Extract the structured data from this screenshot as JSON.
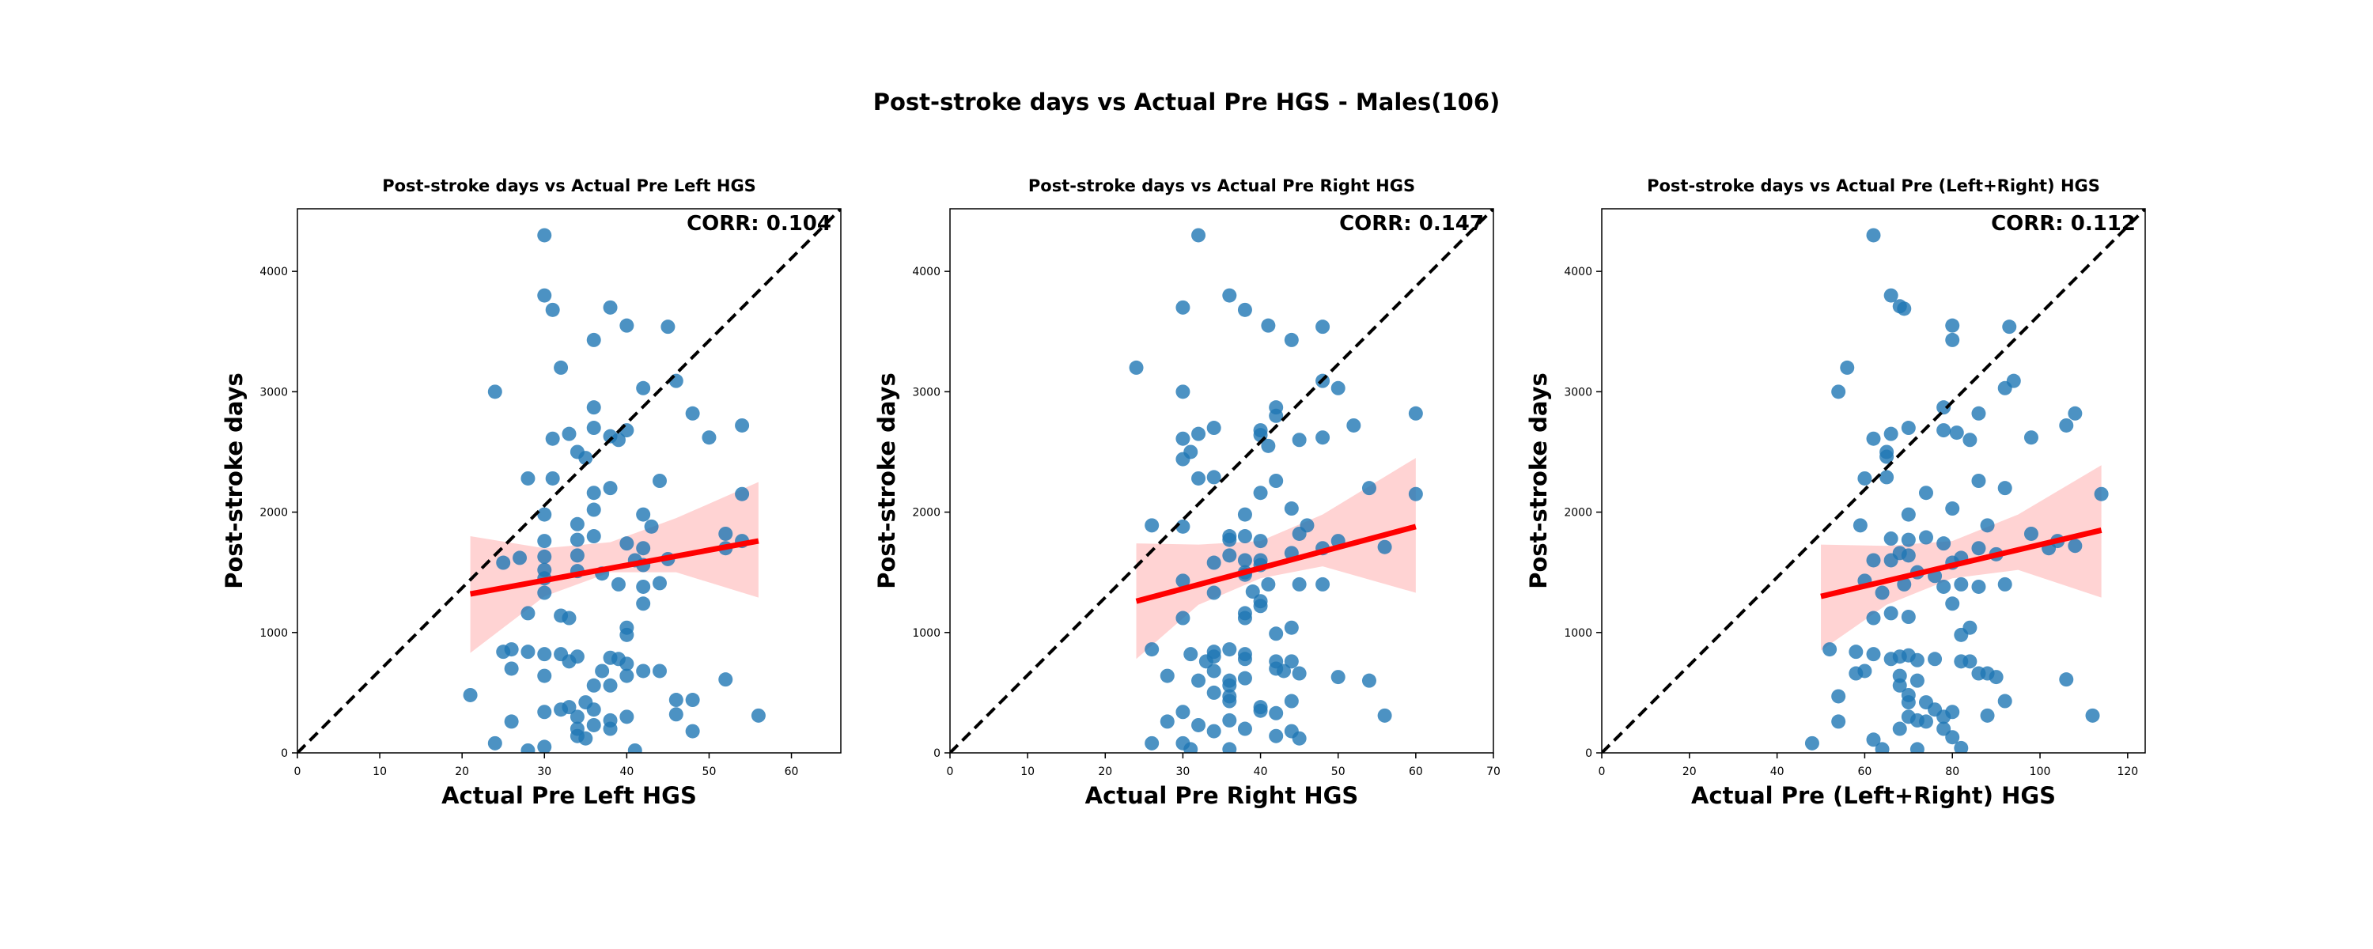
{
  "figure": {
    "suptitle": "Post-stroke days vs Actual Pre HGS - Males(106)"
  },
  "colors": {
    "points": "#1f77b4",
    "regression_line": "#ff0000",
    "confidence_band": "#ffc4c4",
    "identity_line": "#000000"
  },
  "chart_data": [
    {
      "type": "scatter",
      "title": "Post-stroke days vs Actual Pre Left HGS",
      "xlabel": "Actual Pre Left HGS",
      "ylabel": "Post-stroke days",
      "corr_label": "CORR: 0.104",
      "xlim": [
        0,
        66
      ],
      "ylim": [
        0,
        4520
      ],
      "xticks": [
        0,
        10,
        20,
        30,
        40,
        50,
        60
      ],
      "yticks": [
        0,
        1000,
        2000,
        3000,
        4000
      ],
      "regression": {
        "x": [
          21,
          56
        ],
        "y": [
          1320,
          1760
        ]
      },
      "ci_band": {
        "x": [
          21,
          30,
          38,
          46,
          56
        ],
        "upper": [
          1800,
          1700,
          1750,
          1950,
          2250
        ],
        "lower": [
          830,
          1300,
          1500,
          1500,
          1290
        ]
      },
      "identity_line": true,
      "points": [
        [
          30,
          4300
        ],
        [
          30,
          3800
        ],
        [
          31,
          3680
        ],
        [
          38,
          3700
        ],
        [
          40,
          3550
        ],
        [
          45,
          3540
        ],
        [
          36,
          3430
        ],
        [
          32,
          3200
        ],
        [
          24,
          3000
        ],
        [
          42,
          3030
        ],
        [
          46,
          3090
        ],
        [
          36,
          2870
        ],
        [
          48,
          2820
        ],
        [
          54,
          2720
        ],
        [
          36,
          2700
        ],
        [
          40,
          2680
        ],
        [
          33,
          2650
        ],
        [
          38,
          2630
        ],
        [
          39,
          2600
        ],
        [
          31,
          2610
        ],
        [
          50,
          2620
        ],
        [
          34,
          2500
        ],
        [
          35,
          2450
        ],
        [
          28,
          2280
        ],
        [
          31,
          2280
        ],
        [
          44,
          2260
        ],
        [
          36,
          2160
        ],
        [
          38,
          2200
        ],
        [
          54,
          2150
        ],
        [
          30,
          1980
        ],
        [
          36,
          2020
        ],
        [
          42,
          1980
        ],
        [
          43,
          1880
        ],
        [
          34,
          1900
        ],
        [
          36,
          1800
        ],
        [
          34,
          1770
        ],
        [
          30,
          1760
        ],
        [
          40,
          1740
        ],
        [
          42,
          1700
        ],
        [
          52,
          1820
        ],
        [
          54,
          1760
        ],
        [
          52,
          1700
        ],
        [
          25,
          1580
        ],
        [
          27,
          1620
        ],
        [
          30,
          1630
        ],
        [
          34,
          1640
        ],
        [
          37,
          1490
        ],
        [
          41,
          1600
        ],
        [
          45,
          1610
        ],
        [
          42,
          1560
        ],
        [
          34,
          1510
        ],
        [
          30,
          1450
        ],
        [
          30,
          1330
        ],
        [
          39,
          1400
        ],
        [
          42,
          1380
        ],
        [
          44,
          1410
        ],
        [
          42,
          1240
        ],
        [
          32,
          1140
        ],
        [
          28,
          1160
        ],
        [
          33,
          1120
        ],
        [
          40,
          1040
        ],
        [
          40,
          980
        ],
        [
          28,
          840
        ],
        [
          25,
          840
        ],
        [
          26,
          860
        ],
        [
          30,
          820
        ],
        [
          32,
          820
        ],
        [
          33,
          760
        ],
        [
          34,
          800
        ],
        [
          38,
          790
        ],
        [
          39,
          780
        ],
        [
          40,
          740
        ],
        [
          42,
          680
        ],
        [
          44,
          680
        ],
        [
          26,
          700
        ],
        [
          30,
          640
        ],
        [
          37,
          680
        ],
        [
          40,
          640
        ],
        [
          52,
          610
        ],
        [
          36,
          560
        ],
        [
          38,
          560
        ],
        [
          21,
          480
        ],
        [
          46,
          440
        ],
        [
          48,
          440
        ],
        [
          35,
          420
        ],
        [
          32,
          360
        ],
        [
          33,
          380
        ],
        [
          30,
          340
        ],
        [
          36,
          360
        ],
        [
          34,
          300
        ],
        [
          40,
          300
        ],
        [
          46,
          320
        ],
        [
          56,
          310
        ],
        [
          26,
          260
        ],
        [
          38,
          270
        ],
        [
          36,
          230
        ],
        [
          34,
          200
        ],
        [
          38,
          200
        ],
        [
          48,
          180
        ],
        [
          34,
          140
        ],
        [
          35,
          120
        ],
        [
          24,
          80
        ],
        [
          28,
          20
        ],
        [
          30,
          50
        ],
        [
          41,
          20
        ],
        [
          30,
          1520
        ]
      ]
    },
    {
      "type": "scatter",
      "title": "Post-stroke days vs Actual Pre Right HGS",
      "xlabel": "Actual Pre Right HGS",
      "ylabel": "Post-stroke days",
      "corr_label": "CORR: 0.147",
      "xlim": [
        0,
        70
      ],
      "ylim": [
        0,
        4520
      ],
      "xticks": [
        0,
        10,
        20,
        30,
        40,
        50,
        60,
        70
      ],
      "yticks": [
        0,
        1000,
        2000,
        3000,
        4000
      ],
      "regression": {
        "x": [
          24,
          60
        ],
        "y": [
          1260,
          1880
        ]
      },
      "ci_band": {
        "x": [
          24,
          32,
          40,
          48,
          60
        ],
        "upper": [
          1740,
          1730,
          1760,
          1980,
          2450
        ],
        "lower": [
          780,
          1230,
          1450,
          1550,
          1330
        ]
      },
      "identity_line": true,
      "points": [
        [
          32,
          4300
        ],
        [
          36,
          3800
        ],
        [
          38,
          3680
        ],
        [
          30,
          3700
        ],
        [
          41,
          3550
        ],
        [
          48,
          3540
        ],
        [
          44,
          3430
        ],
        [
          24,
          3200
        ],
        [
          30,
          3000
        ],
        [
          48,
          3090
        ],
        [
          50,
          3030
        ],
        [
          42,
          2870
        ],
        [
          42,
          2800
        ],
        [
          60,
          2820
        ],
        [
          52,
          2720
        ],
        [
          34,
          2700
        ],
        [
          40,
          2680
        ],
        [
          40,
          2640
        ],
        [
          32,
          2650
        ],
        [
          30,
          2610
        ],
        [
          45,
          2600
        ],
        [
          48,
          2620
        ],
        [
          41,
          2550
        ],
        [
          31,
          2500
        ],
        [
          30,
          2440
        ],
        [
          34,
          2290
        ],
        [
          32,
          2280
        ],
        [
          42,
          2260
        ],
        [
          54,
          2200
        ],
        [
          40,
          2160
        ],
        [
          60,
          2150
        ],
        [
          38,
          1980
        ],
        [
          44,
          2030
        ],
        [
          26,
          1890
        ],
        [
          46,
          1890
        ],
        [
          30,
          1880
        ],
        [
          36,
          1800
        ],
        [
          36,
          1770
        ],
        [
          38,
          1800
        ],
        [
          40,
          1760
        ],
        [
          45,
          1820
        ],
        [
          50,
          1760
        ],
        [
          48,
          1700
        ],
        [
          56,
          1710
        ],
        [
          36,
          1640
        ],
        [
          38,
          1600
        ],
        [
          40,
          1600
        ],
        [
          40,
          1560
        ],
        [
          44,
          1660
        ],
        [
          34,
          1580
        ],
        [
          38,
          1500
        ],
        [
          38,
          1480
        ],
        [
          30,
          1430
        ],
        [
          41,
          1400
        ],
        [
          45,
          1400
        ],
        [
          48,
          1400
        ],
        [
          34,
          1330
        ],
        [
          39,
          1340
        ],
        [
          40,
          1260
        ],
        [
          40,
          1220
        ],
        [
          30,
          1120
        ],
        [
          38,
          1160
        ],
        [
          38,
          1120
        ],
        [
          42,
          990
        ],
        [
          44,
          1040
        ],
        [
          26,
          860
        ],
        [
          31,
          820
        ],
        [
          33,
          760
        ],
        [
          34,
          800
        ],
        [
          34,
          840
        ],
        [
          36,
          860
        ],
        [
          38,
          820
        ],
        [
          38,
          780
        ],
        [
          42,
          760
        ],
        [
          44,
          760
        ],
        [
          34,
          680
        ],
        [
          36,
          600
        ],
        [
          42,
          700
        ],
        [
          43,
          680
        ],
        [
          45,
          660
        ],
        [
          28,
          640
        ],
        [
          32,
          600
        ],
        [
          38,
          620
        ],
        [
          50,
          630
        ],
        [
          54,
          600
        ],
        [
          36,
          560
        ],
        [
          34,
          500
        ],
        [
          36,
          470
        ],
        [
          36,
          430
        ],
        [
          44,
          430
        ],
        [
          40,
          380
        ],
        [
          30,
          340
        ],
        [
          40,
          350
        ],
        [
          42,
          330
        ],
        [
          56,
          310
        ],
        [
          36,
          270
        ],
        [
          28,
          260
        ],
        [
          32,
          230
        ],
        [
          34,
          180
        ],
        [
          38,
          200
        ],
        [
          44,
          180
        ],
        [
          42,
          140
        ],
        [
          45,
          120
        ],
        [
          26,
          80
        ],
        [
          30,
          80
        ],
        [
          31,
          30
        ],
        [
          36,
          30
        ]
      ]
    },
    {
      "type": "scatter",
      "title": "Post-stroke days vs Actual Pre (Left+Right) HGS",
      "xlabel": "Actual Pre (Left+Right) HGS",
      "ylabel": "Post-stroke days",
      "corr_label": "CORR: 0.112",
      "xlim": [
        0,
        124
      ],
      "ylim": [
        0,
        4520
      ],
      "xticks": [
        0,
        20,
        40,
        60,
        80,
        100,
        120
      ],
      "yticks": [
        0,
        1000,
        2000,
        3000,
        4000
      ],
      "regression": {
        "x": [
          50,
          114
        ],
        "y": [
          1300,
          1850
        ]
      },
      "ci_band": {
        "x": [
          50,
          65,
          80,
          95,
          114
        ],
        "upper": [
          1730,
          1720,
          1760,
          1980,
          2390
        ],
        "lower": [
          850,
          1230,
          1450,
          1520,
          1290
        ]
      },
      "identity_line": true,
      "points": [
        [
          62,
          4300
        ],
        [
          66,
          3800
        ],
        [
          68,
          3710
        ],
        [
          69,
          3690
        ],
        [
          80,
          3550
        ],
        [
          93,
          3540
        ],
        [
          80,
          3430
        ],
        [
          56,
          3200
        ],
        [
          54,
          3000
        ],
        [
          92,
          3030
        ],
        [
          94,
          3090
        ],
        [
          78,
          2870
        ],
        [
          86,
          2820
        ],
        [
          108,
          2820
        ],
        [
          106,
          2720
        ],
        [
          70,
          2700
        ],
        [
          78,
          2680
        ],
        [
          81,
          2660
        ],
        [
          66,
          2650
        ],
        [
          84,
          2600
        ],
        [
          62,
          2610
        ],
        [
          98,
          2620
        ],
        [
          65,
          2500
        ],
        [
          65,
          2460
        ],
        [
          60,
          2280
        ],
        [
          65,
          2290
        ],
        [
          86,
          2260
        ],
        [
          92,
          2200
        ],
        [
          114,
          2150
        ],
        [
          74,
          2160
        ],
        [
          70,
          1980
        ],
        [
          80,
          2030
        ],
        [
          59,
          1890
        ],
        [
          66,
          1780
        ],
        [
          70,
          1770
        ],
        [
          74,
          1790
        ],
        [
          78,
          1740
        ],
        [
          86,
          1700
        ],
        [
          98,
          1820
        ],
        [
          102,
          1700
        ],
        [
          104,
          1760
        ],
        [
          108,
          1720
        ],
        [
          60,
          1430
        ],
        [
          62,
          1600
        ],
        [
          66,
          1600
        ],
        [
          68,
          1660
        ],
        [
          70,
          1640
        ],
        [
          72,
          1500
        ],
        [
          76,
          1470
        ],
        [
          80,
          1580
        ],
        [
          82,
          1620
        ],
        [
          88,
          1890
        ],
        [
          90,
          1650
        ],
        [
          64,
          1330
        ],
        [
          69,
          1400
        ],
        [
          78,
          1380
        ],
        [
          82,
          1400
        ],
        [
          86,
          1380
        ],
        [
          92,
          1400
        ],
        [
          80,
          1240
        ],
        [
          62,
          1120
        ],
        [
          66,
          1160
        ],
        [
          70,
          1130
        ],
        [
          82,
          980
        ],
        [
          84,
          1040
        ],
        [
          52,
          860
        ],
        [
          58,
          840
        ],
        [
          62,
          820
        ],
        [
          66,
          780
        ],
        [
          68,
          800
        ],
        [
          70,
          810
        ],
        [
          72,
          770
        ],
        [
          76,
          780
        ],
        [
          82,
          760
        ],
        [
          84,
          760
        ],
        [
          58,
          660
        ],
        [
          60,
          680
        ],
        [
          68,
          640
        ],
        [
          72,
          600
        ],
        [
          86,
          660
        ],
        [
          88,
          660
        ],
        [
          90,
          630
        ],
        [
          106,
          610
        ],
        [
          68,
          560
        ],
        [
          70,
          480
        ],
        [
          70,
          420
        ],
        [
          74,
          420
        ],
        [
          76,
          360
        ],
        [
          80,
          340
        ],
        [
          92,
          430
        ],
        [
          70,
          300
        ],
        [
          72,
          270
        ],
        [
          74,
          260
        ],
        [
          78,
          300
        ],
        [
          88,
          310
        ],
        [
          112,
          310
        ],
        [
          54,
          470
        ],
        [
          54,
          260
        ],
        [
          68,
          200
        ],
        [
          78,
          200
        ],
        [
          80,
          130
        ],
        [
          62,
          110
        ],
        [
          64,
          30
        ],
        [
          48,
          80
        ],
        [
          72,
          30
        ],
        [
          82,
          40
        ]
      ]
    }
  ]
}
